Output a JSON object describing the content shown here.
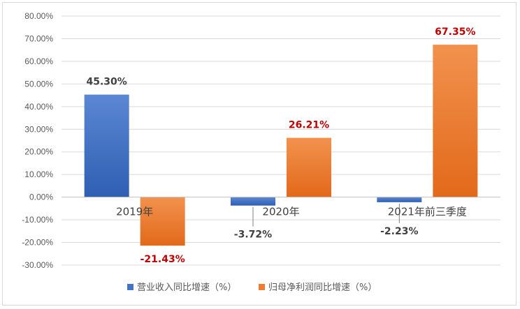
{
  "chart_data": {
    "type": "bar",
    "categories": [
      "2019年",
      "2020年",
      "2021年前三季度"
    ],
    "series": [
      {
        "name": "营业收入同比增速（%）",
        "values": [
          45.3,
          -3.72,
          -2.23
        ],
        "labels": [
          "45.30%",
          "-3.72%",
          "-2.23%"
        ],
        "color": "#4472C4",
        "label_color": "#404040"
      },
      {
        "name": "归母净利润同比增速（%）",
        "values": [
          -21.43,
          26.21,
          67.35
        ],
        "labels": [
          "-21.43%",
          "26.21%",
          "67.35%"
        ],
        "color": "#ED7D31",
        "label_color": "#C00000"
      }
    ],
    "yticks": [
      "80.00%",
      "70.00%",
      "60.00%",
      "50.00%",
      "40.00%",
      "30.00%",
      "20.00%",
      "10.00%",
      "0.00%",
      "-10.00%",
      "-20.00%",
      "-30.00%"
    ],
    "ylim": [
      -30,
      80
    ],
    "grid": true,
    "legend": "bottom"
  }
}
